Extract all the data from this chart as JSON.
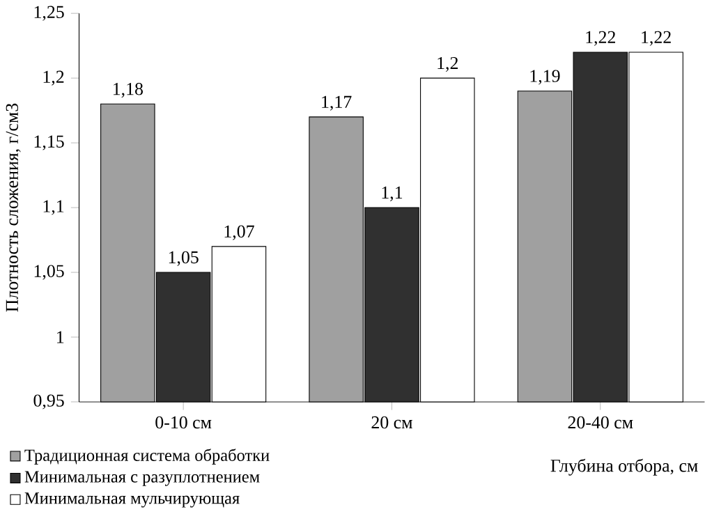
{
  "chart_data": {
    "type": "bar",
    "categories": [
      "0-10 см",
      "20 см",
      "20-40 см"
    ],
    "series": [
      {
        "name": "Традиционная система обработки",
        "color": "#a0a0a0",
        "values": [
          1.18,
          1.17,
          1.19
        ],
        "value_labels": [
          "1,18",
          "1,17",
          "1,19"
        ]
      },
      {
        "name": "Минимальная с разуплотнением",
        "color": "#303030",
        "values": [
          1.05,
          1.1,
          1.22
        ],
        "value_labels": [
          "1,05",
          "1,1",
          "1,22"
        ]
      },
      {
        "name": "Минимальная мульчирующая",
        "color": "#ffffff",
        "values": [
          1.07,
          1.2,
          1.22
        ],
        "value_labels": [
          "1,07",
          "1,2",
          "1,22"
        ]
      }
    ],
    "ylim": [
      0.95,
      1.25
    ],
    "yticks": [
      {
        "value": 0.95,
        "label": "0,95"
      },
      1,
      {
        "value": 1.05,
        "label": "1,05"
      },
      {
        "value": 1.1,
        "label": "1,1"
      },
      {
        "value": 1.15,
        "label": "1,15"
      },
      {
        "value": 1.2,
        "label": "1,2"
      },
      {
        "value": 1.25,
        "label": "1,25"
      }
    ],
    "ylabel": "Плотность сложения, г/см3",
    "xlabel": "Глубина отбора, см",
    "legend": "bottom left",
    "grid": false
  }
}
